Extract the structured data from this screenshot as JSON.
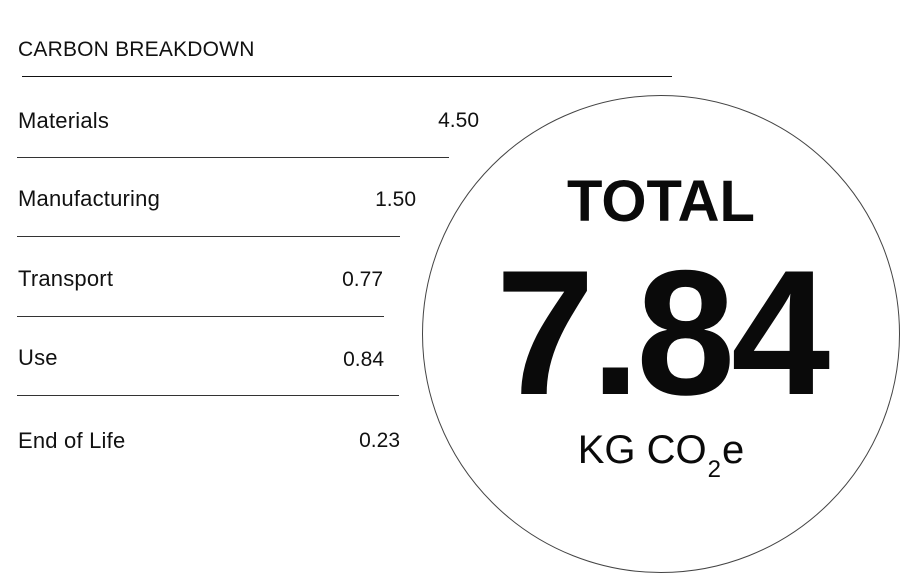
{
  "breakdown": {
    "heading": "CARBON BREAKDOWN",
    "rows": [
      {
        "label": "Materials",
        "value": "4.50"
      },
      {
        "label": "Manufacturing",
        "value": "1.50"
      },
      {
        "label": "Transport",
        "value": "0.77"
      },
      {
        "label": "Use",
        "value": "0.84"
      },
      {
        "label": "End of Life",
        "value": "0.23"
      }
    ]
  },
  "total": {
    "label": "TOTAL",
    "value": "7.84",
    "unit_prefix": "KG CO",
    "unit_subscript": "2",
    "unit_suffix": "e"
  }
}
